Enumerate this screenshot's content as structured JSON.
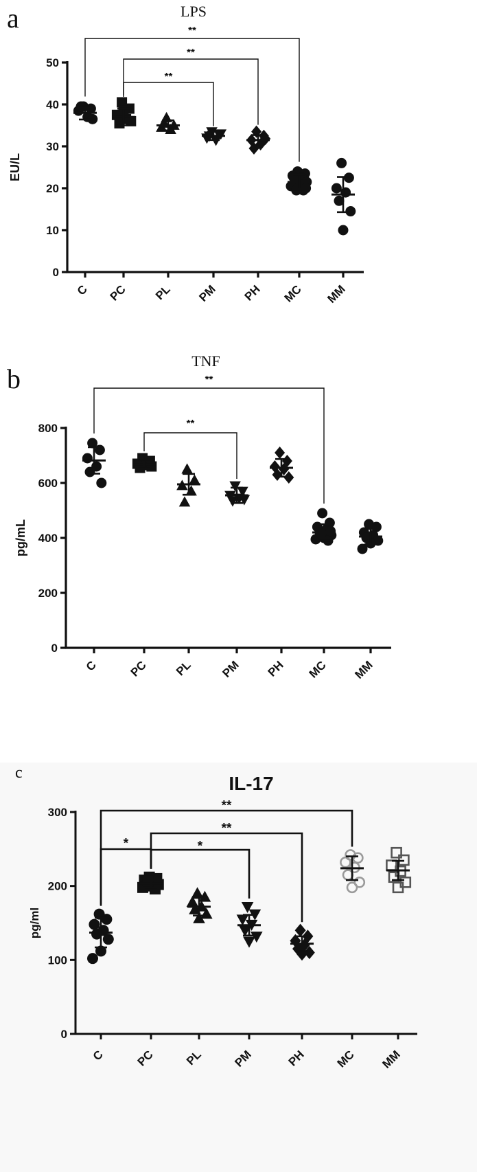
{
  "chart_data": [
    {
      "panel": "a",
      "type": "scatter",
      "title": "LPS",
      "ylabel": "EU/L",
      "xlabel": "",
      "categories": [
        "C",
        "PC",
        "PL",
        "PM",
        "PH",
        "MC",
        "MM"
      ],
      "yticks": [
        "0",
        "10",
        "20",
        "30",
        "40",
        "50"
      ],
      "ylim": [
        0,
        50
      ],
      "markers": [
        "circle",
        "square",
        "triangle-up",
        "triangle-down",
        "diamond",
        "circle",
        "circle"
      ],
      "marker_color": "#111111",
      "groups": [
        {
          "category": "C",
          "mean": 38.0,
          "sd": 1.6,
          "points": [
            39.5,
            39.0,
            38.5,
            37.0,
            39.5,
            36.5
          ]
        },
        {
          "category": "PC",
          "mean": 37.0,
          "sd": 2.0,
          "points": [
            40.5,
            39.0,
            37.5,
            36.5,
            35.5,
            36.0,
            38.5
          ]
        },
        {
          "category": "PL",
          "mean": 35.0,
          "sd": 1.2,
          "points": [
            36.8,
            35.0,
            34.5,
            34.0,
            35.5
          ]
        },
        {
          "category": "PM",
          "mean": 32.5,
          "sd": 1.0,
          "points": [
            33.5,
            32.8,
            32.0,
            31.5,
            32.5,
            33.0
          ]
        },
        {
          "category": "PH",
          "mean": 31.5,
          "sd": 1.2,
          "points": [
            33.5,
            32.5,
            31.5,
            30.5,
            29.5,
            31.8
          ]
        },
        {
          "category": "MC",
          "mean": 21.5,
          "sd": 1.8,
          "points": [
            24.0,
            23.5,
            23.0,
            22.5,
            22.0,
            21.5,
            21.0,
            20.5,
            19.5,
            19.5,
            20.0,
            22.5
          ]
        },
        {
          "category": "MM",
          "mean": 18.5,
          "sd": 4.2,
          "points": [
            26.0,
            22.5,
            20.0,
            19.0,
            17.0,
            14.5,
            10.0
          ]
        }
      ],
      "comparisons": [
        {
          "from": "C",
          "to": "MC",
          "label": "**"
        },
        {
          "from": "PC",
          "to": "PH",
          "label": "**"
        },
        {
          "from": "PC",
          "to": "PM",
          "label": "**"
        }
      ]
    },
    {
      "panel": "b",
      "type": "scatter",
      "title": "TNF",
      "ylabel": "pg/mL",
      "xlabel": "",
      "categories": [
        "C",
        "PC",
        "PL",
        "PM",
        "PH",
        "MC",
        "MM"
      ],
      "yticks": [
        "0",
        "200",
        "400",
        "600",
        "800"
      ],
      "ylim": [
        0,
        800
      ],
      "markers": [
        "circle",
        "square",
        "triangle-up",
        "triangle-down",
        "diamond",
        "circle",
        "circle"
      ],
      "marker_color": "#111111",
      "groups": [
        {
          "category": "C",
          "mean": 682,
          "sd": 48,
          "points": [
            745,
            720,
            690,
            660,
            640,
            600
          ]
        },
        {
          "category": "PC",
          "mean": 668,
          "sd": 16,
          "points": [
            690,
            680,
            670,
            665,
            655,
            660
          ]
        },
        {
          "category": "PL",
          "mean": 595,
          "sd": 38,
          "points": [
            650,
            610,
            590,
            570,
            530
          ]
        },
        {
          "category": "PM",
          "mean": 555,
          "sd": 28,
          "points": [
            590,
            570,
            555,
            545,
            535,
            540
          ]
        },
        {
          "category": "PH",
          "mean": 655,
          "sd": 32,
          "points": [
            710,
            680,
            660,
            650,
            630,
            620
          ]
        },
        {
          "category": "MC",
          "mean": 420,
          "sd": 30,
          "points": [
            490,
            455,
            440,
            430,
            420,
            410,
            400,
            395,
            390,
            415,
            425
          ]
        },
        {
          "category": "MM",
          "mean": 405,
          "sd": 28,
          "points": [
            450,
            440,
            420,
            410,
            400,
            390,
            380,
            360
          ]
        }
      ],
      "comparisons": [
        {
          "from": "C",
          "to": "MC",
          "label": "**"
        },
        {
          "from": "PC",
          "to": "PM",
          "label": "**"
        }
      ]
    },
    {
      "panel": "c",
      "type": "scatter",
      "title": "IL-17",
      "ylabel": "pg/ml",
      "xlabel": "",
      "categories": [
        "C",
        "PC",
        "PL",
        "PM",
        "PH",
        "MC",
        "MM"
      ],
      "yticks": [
        "0",
        "100",
        "200",
        "300"
      ],
      "ylim": [
        0,
        300
      ],
      "markers": [
        "circle",
        "square",
        "triangle-up",
        "triangle-down",
        "diamond",
        "open-circle",
        "open-square"
      ],
      "marker_colors": [
        "#111111",
        "#111111",
        "#111111",
        "#111111",
        "#111111",
        "#9a9a9a",
        "#555555"
      ],
      "groups": [
        {
          "category": "C",
          "mean": 137,
          "sd": 20,
          "points": [
            162,
            155,
            148,
            140,
            135,
            128,
            112,
            102
          ]
        },
        {
          "category": "PC",
          "mean": 203,
          "sd": 5,
          "points": [
            212,
            210,
            208,
            206,
            204,
            202,
            200,
            198,
            196,
            207
          ]
        },
        {
          "category": "PL",
          "mean": 172,
          "sd": 12,
          "points": [
            190,
            185,
            178,
            172,
            168,
            162,
            156
          ]
        },
        {
          "category": "PM",
          "mean": 147,
          "sd": 14,
          "points": [
            172,
            162,
            155,
            148,
            140,
            132,
            125
          ]
        },
        {
          "category": "PH",
          "mean": 122,
          "sd": 10,
          "points": [
            140,
            132,
            126,
            120,
            115,
            110,
            108
          ]
        },
        {
          "category": "MC",
          "mean": 224,
          "sd": 16,
          "points": [
            242,
            238,
            232,
            225,
            215,
            205,
            198
          ]
        },
        {
          "category": "MM",
          "mean": 221,
          "sd": 13,
          "points": [
            245,
            235,
            228,
            220,
            212,
            205,
            198
          ]
        }
      ],
      "comparisons": [
        {
          "from": "C",
          "to": "MC",
          "label": "**"
        },
        {
          "from": "PC",
          "to": "PH",
          "label": "**"
        },
        {
          "from": "C",
          "to": "PC",
          "label": "*"
        },
        {
          "from": "PC",
          "to": "PM",
          "label": "*"
        }
      ]
    }
  ],
  "panel_letters": [
    "a",
    "b",
    "c"
  ]
}
